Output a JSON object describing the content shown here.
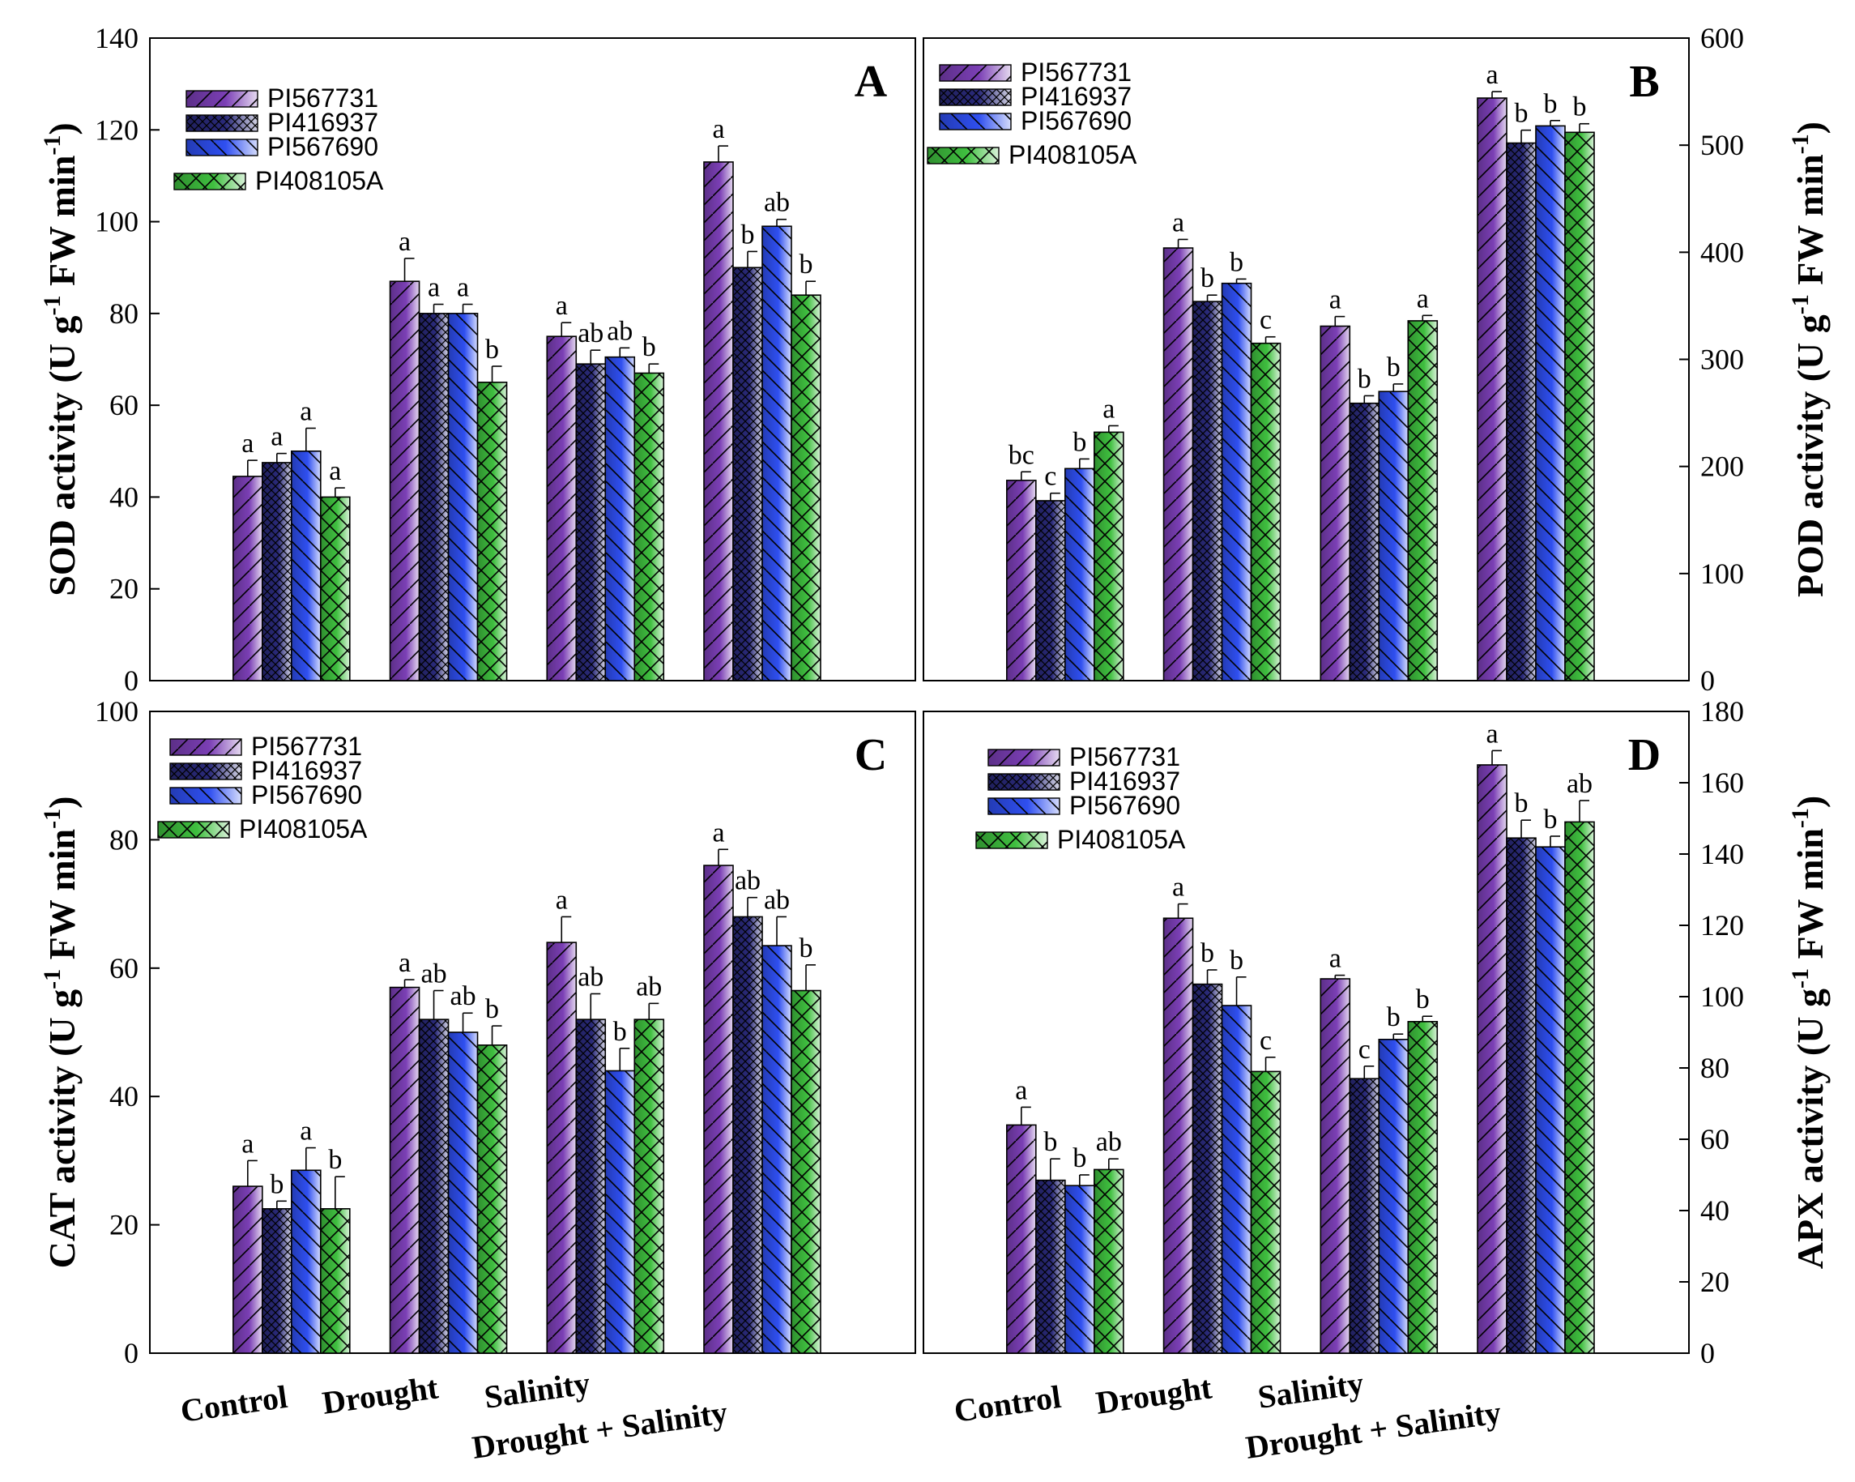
{
  "figure": {
    "categories": [
      "Control",
      "Drought",
      "Salinity",
      "Drought + Salinity"
    ],
    "legend": [
      "PI567731",
      "PI416937",
      "PI567690",
      "PI408105A"
    ],
    "colors": {
      "PI567731": "#7b3fb5",
      "PI416937": "#2a2a7a",
      "PI567690": "#2f4ff0",
      "PI408105A": "#3fbf3f"
    }
  },
  "chart_data": [
    {
      "type": "bar",
      "panel": "A",
      "ylabel": "SOD activity (U g-1 FW min-1)",
      "ylabel_parts": {
        "pre": "SOD activity (U g",
        "sup1": "-1",
        "mid": " FW min",
        "sup2": "-1",
        "post": ")"
      },
      "ylim": [
        0,
        140
      ],
      "yticks": [
        0,
        20,
        40,
        60,
        80,
        100,
        120,
        140
      ],
      "categories": [
        "Control",
        "Drought",
        "Salinity",
        "Drought + Salinity"
      ],
      "series": [
        {
          "name": "PI567731",
          "values": [
            44.5,
            87,
            75,
            113
          ],
          "errors": [
            3.5,
            5,
            3,
            3.5
          ],
          "letters": [
            "a",
            "a",
            "a",
            "a"
          ]
        },
        {
          "name": "PI416937",
          "values": [
            47.5,
            80,
            69,
            90
          ],
          "errors": [
            2,
            2,
            3,
            3.5
          ],
          "letters": [
            "a",
            "a",
            "ab",
            "b"
          ]
        },
        {
          "name": "PI567690",
          "values": [
            50,
            80,
            70.5,
            99
          ],
          "errors": [
            5,
            2,
            2,
            1.5
          ],
          "letters": [
            "a",
            "a",
            "ab",
            "ab"
          ]
        },
        {
          "name": "PI408105A",
          "values": [
            40,
            65,
            67,
            84
          ],
          "errors": [
            2,
            3.5,
            2,
            3
          ],
          "letters": [
            "a",
            "b",
            "b",
            "b"
          ]
        }
      ]
    },
    {
      "type": "bar",
      "panel": "B",
      "ylabel": "POD activity (U g-1 FW min-1)",
      "ylabel_parts": {
        "pre": "POD activity (U g",
        "sup1": "-1",
        "mid": " FW min",
        "sup2": "-1",
        "post": ")"
      },
      "ylim": [
        0,
        600
      ],
      "yticks": [
        0,
        100,
        200,
        300,
        400,
        500,
        600
      ],
      "categories": [
        "Control",
        "Drought",
        "Salinity",
        "Drought + Salinity"
      ],
      "series": [
        {
          "name": "PI567731",
          "values": [
            187,
            404,
            331,
            544
          ],
          "errors": [
            8,
            8,
            9,
            6
          ],
          "letters": [
            "bc",
            "a",
            "a",
            "a"
          ]
        },
        {
          "name": "PI416937",
          "values": [
            168,
            354,
            259,
            502
          ],
          "errors": [
            7,
            6,
            7,
            12
          ],
          "letters": [
            "c",
            "b",
            "b",
            "b"
          ]
        },
        {
          "name": "PI567690",
          "values": [
            198,
            371,
            270,
            518
          ],
          "errors": [
            9,
            4,
            7,
            5
          ],
          "letters": [
            "b",
            "b",
            "b",
            "b"
          ]
        },
        {
          "name": "PI408105A",
          "values": [
            232,
            315,
            336,
            512
          ],
          "errors": [
            6,
            6,
            5,
            8
          ],
          "letters": [
            "a",
            "c",
            "a",
            "b"
          ]
        }
      ]
    },
    {
      "type": "bar",
      "panel": "C",
      "ylabel": "CAT activity (U g-1 FW min-1)",
      "ylabel_parts": {
        "pre": "CAT activity (U g",
        "sup1": "-1",
        "mid": " FW min",
        "sup2": "-1",
        "post": ")"
      },
      "ylim": [
        0,
        100
      ],
      "yticks": [
        0,
        20,
        40,
        60,
        80,
        100
      ],
      "categories": [
        "Control",
        "Drought",
        "Salinity",
        "Drought + Salinity"
      ],
      "series": [
        {
          "name": "PI567731",
          "values": [
            26,
            57,
            64,
            76
          ],
          "errors": [
            4,
            1.2,
            4,
            2.5
          ],
          "letters": [
            "a",
            "a",
            "a",
            "a"
          ]
        },
        {
          "name": "PI416937",
          "values": [
            22.5,
            52,
            52,
            68
          ],
          "errors": [
            1.2,
            4.5,
            4,
            3
          ],
          "letters": [
            "b",
            "ab",
            "ab",
            "ab"
          ]
        },
        {
          "name": "PI567690",
          "values": [
            28.5,
            50,
            44,
            63.5
          ],
          "errors": [
            3.5,
            3,
            3.5,
            4.5
          ],
          "letters": [
            "a",
            "ab",
            "b",
            "ab"
          ]
        },
        {
          "name": "PI408105A",
          "values": [
            22.5,
            48,
            52,
            56.5
          ],
          "errors": [
            5,
            3,
            2.5,
            4
          ],
          "letters": [
            "b",
            "b",
            "ab",
            "b"
          ]
        }
      ]
    },
    {
      "type": "bar",
      "panel": "D",
      "ylabel": "APX activity (U g-1 FW min-1)",
      "ylabel_parts": {
        "pre": "APX activity (U g",
        "sup1": "-1",
        "mid": " FW min",
        "sup2": "-1",
        "post": ")"
      },
      "ylim": [
        0,
        180
      ],
      "yticks": [
        0,
        20,
        40,
        60,
        80,
        100,
        120,
        140,
        160,
        180
      ],
      "categories": [
        "Control",
        "Drought",
        "Salinity",
        "Drought + Salinity"
      ],
      "series": [
        {
          "name": "PI567731",
          "values": [
            64,
            122,
            105,
            165
          ],
          "errors": [
            5,
            4,
            1,
            4
          ],
          "letters": [
            "a",
            "a",
            "a",
            "a"
          ]
        },
        {
          "name": "PI416937",
          "values": [
            48.5,
            103.5,
            77,
            144.5
          ],
          "errors": [
            6,
            4,
            3.5,
            5
          ],
          "letters": [
            "b",
            "b",
            "c",
            "b"
          ]
        },
        {
          "name": "PI567690",
          "values": [
            47,
            97.5,
            88,
            142
          ],
          "errors": [
            3,
            8,
            1.5,
            3
          ],
          "letters": [
            "b",
            "b",
            "b",
            "b"
          ]
        },
        {
          "name": "PI408105A",
          "values": [
            51.5,
            79,
            93,
            149
          ],
          "errors": [
            3,
            4,
            1.5,
            6
          ],
          "letters": [
            "ab",
            "c",
            "b",
            "ab"
          ]
        }
      ]
    }
  ]
}
